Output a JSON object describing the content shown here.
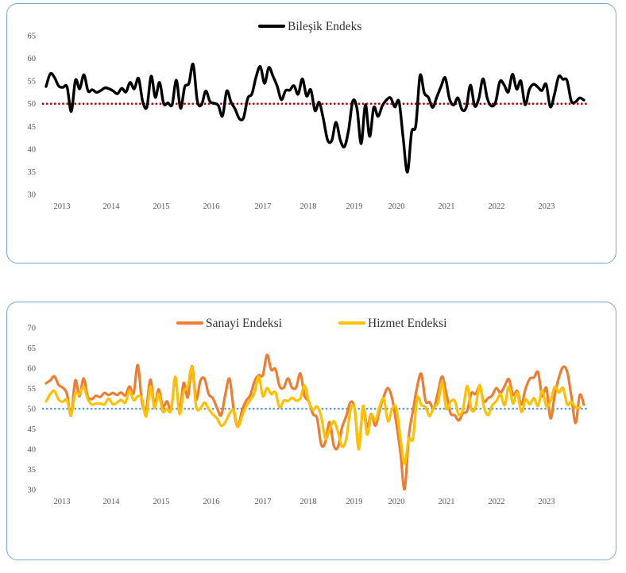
{
  "chart_data": [
    {
      "type": "line",
      "title": "",
      "xlabel": "",
      "ylabel": "",
      "ylim": [
        30,
        65
      ],
      "yticks": [
        30,
        35,
        40,
        45,
        50,
        55,
        60,
        65
      ],
      "xticks": [
        "2013",
        "2014",
        "2015",
        "2016",
        "2017",
        "2018",
        "2019",
        "2020",
        "2021",
        "2022",
        "2023"
      ],
      "grid": false,
      "legend_position": "top",
      "reference_line": {
        "y": 50,
        "style": "dotted",
        "color": "#c00000"
      },
      "series": [
        {
          "name": "Bileşik Endeks",
          "color": "#000000",
          "x_start": 2013.0,
          "x_step": 0.08333,
          "values": [
            53.8,
            56.6,
            55.8,
            53.9,
            53.6,
            53.7,
            48.3,
            55.2,
            53.3,
            56.4,
            52.8,
            53.1,
            52.5,
            52.9,
            53.5,
            53.3,
            52.8,
            52.2,
            53.4,
            52.6,
            54.7,
            53.3,
            55.6,
            50.5,
            49.3,
            56.1,
            51.4,
            54.7,
            50.0,
            50.2,
            49.8,
            55.2,
            49.0,
            53.7,
            54.5,
            58.7,
            50.6,
            49.8,
            52.8,
            50.5,
            50.1,
            49.6,
            47.3,
            52.8,
            50.4,
            48.8,
            46.7,
            46.9,
            51.2,
            52.2,
            56.0,
            58.2,
            54.5,
            58.0,
            56.1,
            53.9,
            50.9,
            52.9,
            53.0,
            54.0,
            52.1,
            55.5,
            51.7,
            53.1,
            48.5,
            50.3,
            46.6,
            42.0,
            41.9,
            45.9,
            42.1,
            40.5,
            44.2,
            50.6,
            48.9,
            41.2,
            49.8,
            42.8,
            49.2,
            47.2,
            49.5,
            50.8,
            51.3,
            49.3,
            50.5,
            42.3,
            34.9,
            43.7,
            45.2,
            56.2,
            52.4,
            51.4,
            49.2,
            51.5,
            53.8,
            55.7,
            51.1,
            49.7,
            51.3,
            48.7,
            49.2,
            54.1,
            49.5,
            51.2,
            55.5,
            51.2,
            49.5,
            50.4,
            54.9,
            54.2,
            52.6,
            56.5,
            53.2,
            55.0,
            49.8,
            53.1,
            54.3,
            53.7,
            52.9,
            54.3,
            49.3,
            52.1,
            56.0,
            55.4,
            55.1,
            50.6,
            50.4,
            51.3,
            50.8
          ]
        }
      ]
    },
    {
      "type": "line",
      "title": "",
      "xlabel": "",
      "ylabel": "",
      "ylim": [
        30,
        70
      ],
      "yticks": [
        30,
        35,
        40,
        45,
        50,
        55,
        60,
        65,
        70
      ],
      "xticks": [
        "2013",
        "2014",
        "2015",
        "2016",
        "2017",
        "2018",
        "2019",
        "2020",
        "2021",
        "2022",
        "2023"
      ],
      "grid": false,
      "legend_position": "top",
      "reference_line": {
        "y": 50,
        "style": "dotted",
        "color": "#5b9bd5"
      },
      "series": [
        {
          "name": "Sanayi Endeksi",
          "color": "#ed7d31",
          "x_start": 2013.0,
          "x_step": 0.08333,
          "values": [
            56.3,
            57.0,
            58.0,
            55.9,
            55.2,
            53.7,
            48.4,
            57.0,
            53.1,
            57.5,
            53.0,
            52.4,
            53.2,
            52.9,
            53.9,
            53.4,
            53.9,
            53.4,
            54.0,
            53.3,
            55.5,
            53.8,
            60.8,
            51.6,
            50.0,
            57.2,
            51.0,
            54.8,
            50.5,
            51.8,
            49.9,
            57.4,
            49.5,
            56.4,
            52.8,
            60.5,
            52.3,
            56.9,
            57.4,
            53.6,
            52.6,
            50.2,
            48.4,
            53.6,
            57.4,
            49.8,
            45.5,
            49.6,
            52.0,
            53.4,
            56.8,
            58.3,
            58.3,
            63.3,
            59.6,
            59.8,
            55.6,
            55.2,
            57.5,
            55.2,
            55.3,
            58.7,
            53.2,
            51.8,
            48.7,
            47.6,
            41.1,
            41.8,
            46.7,
            40.9,
            40.5,
            45.4,
            48.2,
            51.6,
            50.0,
            40.2,
            50.2,
            45.5,
            48.7,
            45.8,
            49.7,
            53.0,
            55.1,
            52.5,
            46.5,
            39.1,
            30.1,
            43.3,
            49.5,
            55.4,
            58.6,
            52.0,
            51.6,
            50.1,
            54.1,
            58.0,
            53.8,
            48.9,
            48.4,
            47.1,
            48.9,
            49.5,
            53.8,
            53.6,
            55.4,
            51.8,
            52.6,
            53.3,
            55.1,
            53.9,
            55.6,
            57.3,
            53.4,
            54.4,
            51.1,
            54.9,
            57.4,
            57.7,
            59.0,
            53.1,
            55.1,
            47.6,
            53.4,
            57.7,
            60.3,
            59.1,
            53.0,
            46.5,
            53.4,
            51.0
          ]
        },
        {
          "name": "Hizmet Endeksi",
          "color": "#ffc000",
          "x_start": 2013.0,
          "x_step": 0.08333,
          "values": [
            51.8,
            53.6,
            54.4,
            52.3,
            51.7,
            52.2,
            48.5,
            53.8,
            53.5,
            55.4,
            52.4,
            51.0,
            51.3,
            51.3,
            51.1,
            52.5,
            51.1,
            51.5,
            52.2,
            51.5,
            54.4,
            52.1,
            53.1,
            52.5,
            48.1,
            55.5,
            50.2,
            53.7,
            49.3,
            50.0,
            49.6,
            57.9,
            48.7,
            54.2,
            55.5,
            60.2,
            50.5,
            50.1,
            51.5,
            49.9,
            48.6,
            47.6,
            45.8,
            46.7,
            48.8,
            49.6,
            45.6,
            48.2,
            50.7,
            52.2,
            54.0,
            58.0,
            53.1,
            55.1,
            53.6,
            54.1,
            50.3,
            52.0,
            51.9,
            52.7,
            52.0,
            52.6,
            55.7,
            51.8,
            49.7,
            50.5,
            48.0,
            42.6,
            44.8,
            46.9,
            44.3,
            40.6,
            42.6,
            49.6,
            50.0,
            40.0,
            50.7,
            43.6,
            48.4,
            47.1,
            50.5,
            52.5,
            46.9,
            49.9,
            50.2,
            42.6,
            36.4,
            42.6,
            42.6,
            52.6,
            50.9,
            50.4,
            48.2,
            50.4,
            51.5,
            56.4,
            50.0,
            51.7,
            52.0,
            48.5,
            49.9,
            55.6,
            49.8,
            50.4,
            55.8,
            50.5,
            48.4,
            50.8,
            51.9,
            53.6,
            50.9,
            55.5,
            51.3,
            54.0,
            49.2,
            52.3,
            51.1,
            52.6,
            50.7,
            54.5,
            50.6,
            51.9,
            55.4,
            54.0,
            55.1,
            51.0,
            51.7,
            50.3,
            50.3
          ]
        }
      ]
    }
  ]
}
